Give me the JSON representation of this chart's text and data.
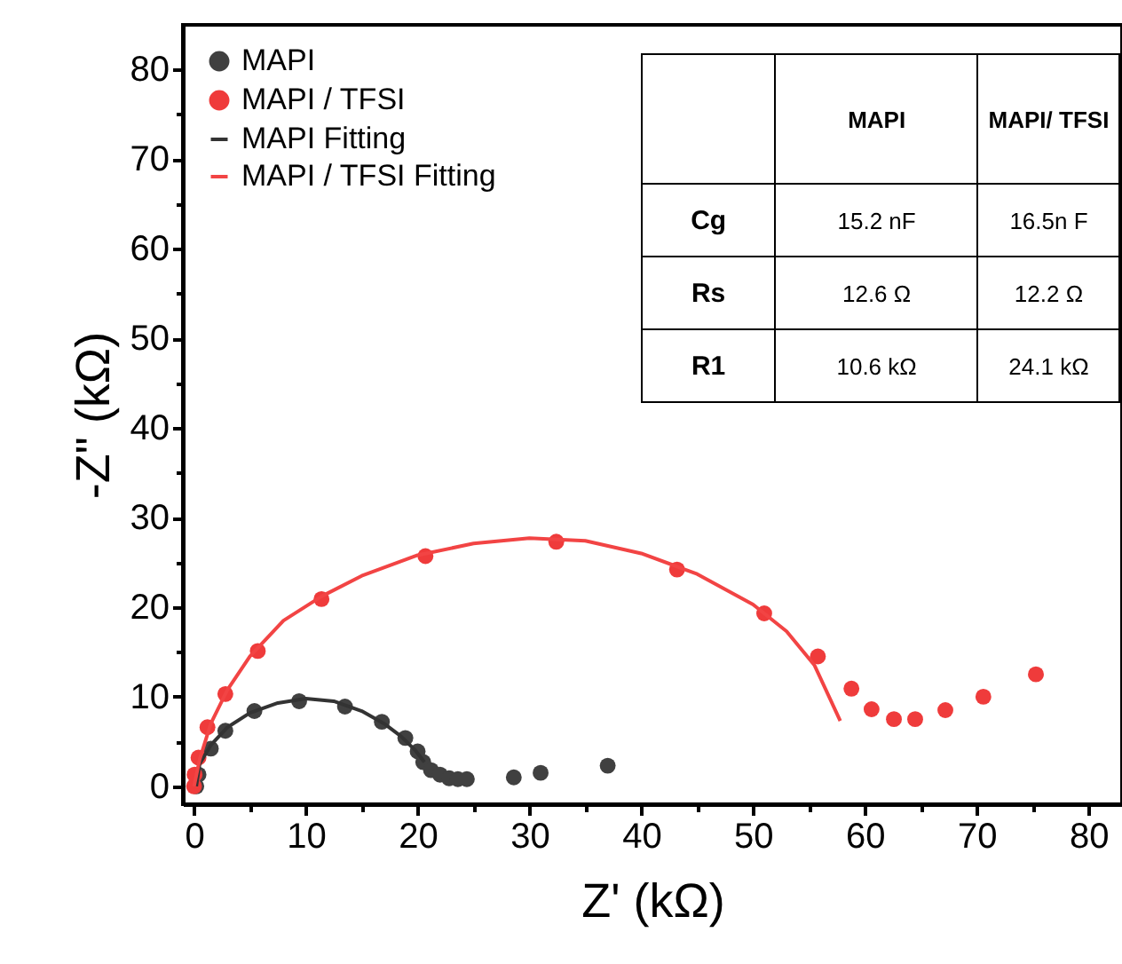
{
  "chart_data": {
    "type": "scatter",
    "xlabel": "Z' (kΩ)",
    "ylabel": "-Z\" (kΩ)",
    "xlim": [
      -1,
      83
    ],
    "ylim": [
      -2,
      85
    ],
    "xticks": [
      0,
      {
        "value": 5,
        "label": null
      },
      10,
      {
        "value": 15,
        "label": null
      },
      20,
      {
        "value": 25,
        "label": null
      },
      30,
      {
        "value": 35,
        "label": null
      },
      40,
      {
        "value": 45,
        "label": null
      },
      50,
      {
        "value": 55,
        "label": null
      },
      60,
      {
        "value": 65,
        "label": null
      },
      70,
      {
        "value": 75,
        "label": null
      },
      80
    ],
    "yticks": [
      0,
      {
        "value": 5,
        "label": null
      },
      10,
      {
        "value": 15,
        "label": null
      },
      20,
      {
        "value": 25,
        "label": null
      },
      30,
      {
        "value": 35,
        "label": null
      },
      40,
      {
        "value": 45,
        "label": null
      },
      50,
      {
        "value": 55,
        "label": null
      },
      60,
      {
        "value": 65,
        "label": null
      },
      70,
      {
        "value": 75,
        "label": null
      },
      80
    ],
    "legend": "top left",
    "grid": false,
    "series": [
      {
        "name": "MAPI",
        "marker": "circle",
        "color": "#404040",
        "x": [
          0.2,
          0.4,
          1.5,
          2.8,
          5.4,
          9.4,
          13.5,
          16.8,
          18.9,
          20,
          20.5,
          21.2,
          22,
          22.8,
          23.6,
          24.4,
          28.6,
          31,
          37
        ],
        "values": [
          0,
          1.3,
          4.2,
          6.2,
          8.4,
          9.5,
          8.9,
          7.2,
          5.4,
          3.9,
          2.7,
          1.8,
          1.3,
          0.9,
          0.8,
          0.8,
          1,
          1.5,
          2.3
        ]
      },
      {
        "name": "MAPI / TFSI",
        "marker": "circle",
        "color": "#ef3b3b",
        "x": [
          0,
          0.05,
          0.4,
          1.2,
          2.8,
          5.7,
          11.4,
          20.7,
          32.4,
          43.2,
          51,
          55.8,
          58.8,
          60.6,
          62.6,
          64.5,
          67.2,
          70.6,
          75.3
        ],
        "values": [
          0,
          1.3,
          3.2,
          6.6,
          10.3,
          15.1,
          20.9,
          25.7,
          27.3,
          24.2,
          19.3,
          14.5,
          10.9,
          8.6,
          7.5,
          7.5,
          8.5,
          10,
          12.5
        ]
      },
      {
        "name": "MAPI Fitting",
        "type": "line",
        "color": "#333333",
        "x": [
          0.2,
          0.5,
          1.5,
          3,
          5,
          7.5,
          10,
          12.5,
          15,
          17,
          18.5,
          19.8,
          20.6
        ],
        "values": [
          0,
          2.5,
          4.6,
          6.6,
          8.2,
          9.3,
          9.8,
          9.5,
          8.4,
          7,
          5.6,
          4,
          2.7
        ]
      },
      {
        "name": "MAPI / TFSI Fitting",
        "type": "line",
        "color": "#f24444",
        "x": [
          0,
          0.5,
          1.5,
          3,
          5,
          8,
          11.4,
          15,
          20,
          25,
          30,
          35,
          40,
          45,
          50,
          53,
          55.5,
          57.8
        ],
        "values": [
          0,
          3,
          7,
          10.8,
          14.5,
          18.5,
          21.2,
          23.5,
          25.8,
          27.1,
          27.7,
          27.4,
          26,
          23.7,
          20.3,
          17.3,
          13.5,
          7.3
        ]
      }
    ],
    "annotations": [
      "MAPI",
      "MAPI/ TFSI",
      "Cg",
      "15.2 nF",
      "16.5n F",
      "Rs",
      "12.6 Ω",
      "12.2 Ω",
      "R1",
      "10.6 kΩ",
      "24.1 kΩ"
    ]
  }
}
